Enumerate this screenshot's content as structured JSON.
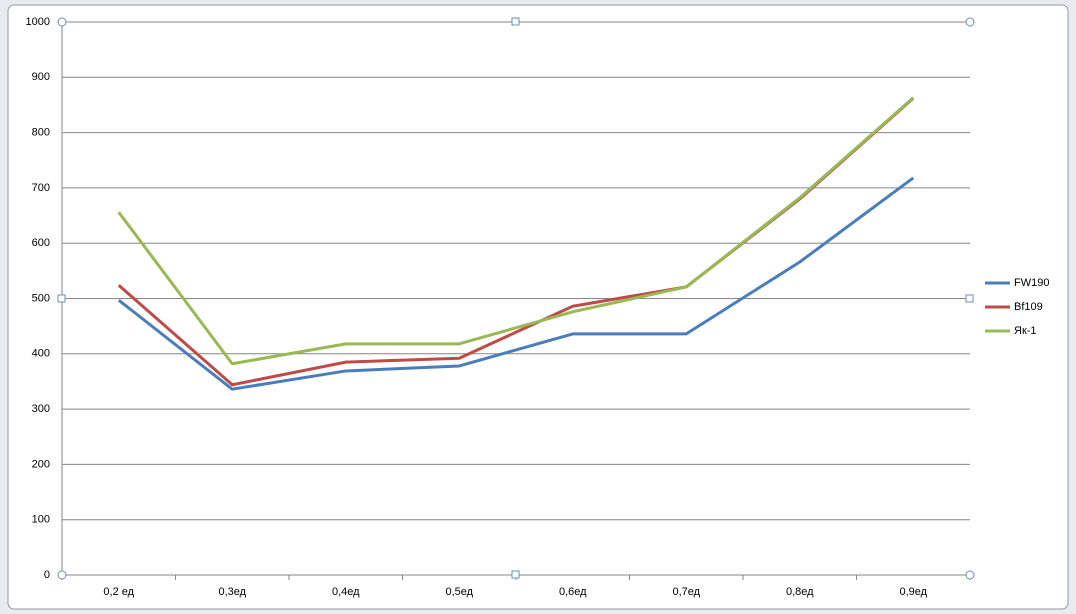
{
  "chart_data": {
    "type": "line",
    "categories": [
      "0,2 ед",
      "0,3ед",
      "0,4ед",
      "0,5ед",
      "0,6ед",
      "0,7ед",
      "0,8ед",
      "0,9ед"
    ],
    "series": [
      {
        "name": "FW190",
        "color": "#4a7ebb",
        "values": [
          497,
          336,
          369,
          378,
          436,
          436,
          566,
          718
        ]
      },
      {
        "name": "Bf109",
        "color": "#be4b48",
        "values": [
          524,
          344,
          385,
          392,
          486,
          521,
          680,
          862
        ]
      },
      {
        "name": "Як-1",
        "color": "#98b954",
        "values": [
          656,
          382,
          418,
          418,
          476,
          521,
          682,
          863
        ]
      }
    ],
    "ylim": [
      0,
      1000
    ],
    "yticks": [
      0,
      100,
      200,
      300,
      400,
      500,
      600,
      700,
      800,
      900,
      1000
    ],
    "grid": true,
    "legend": "right"
  }
}
